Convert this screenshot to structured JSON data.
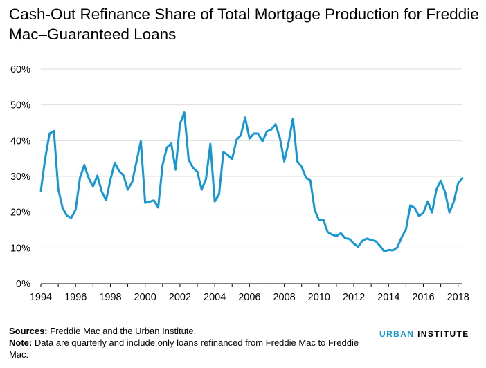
{
  "title": "Cash-Out Refinance Share of Total Mortgage Production for Freddie Mac–Guaranteed Loans",
  "footer": {
    "sources_label": "Sources:",
    "sources_text": " Freddie Mac and the Urban Institute.",
    "note_label": "Note:",
    "note_text": " Data are quarterly and include only loans refinanced from Freddie Mac to Freddie Mac."
  },
  "logo": {
    "word1": "URBAN",
    "word2": " INSTITUTE",
    "accent_color": "#1696d2"
  },
  "chart_data": {
    "type": "line",
    "title": "Cash-Out Refinance Share of Total Mortgage Production for Freddie Mac–Guaranteed Loans",
    "xlabel": "",
    "ylabel": "",
    "xlim": [
      1994,
      2018.25
    ],
    "ylim": [
      0,
      60
    ],
    "y_unit": "%",
    "x_ticks": [
      "1994",
      "1996",
      "1998",
      "2000",
      "2002",
      "2004",
      "2006",
      "2008",
      "2010",
      "2012",
      "2014",
      "2016",
      "2018"
    ],
    "y_ticks": [
      "0%",
      "10%",
      "20%",
      "30%",
      "40%",
      "50%",
      "60%"
    ],
    "grid": "horizontal",
    "legend": "none",
    "line_color": "#1696d2",
    "series": [
      {
        "x": [
          1994.0,
          1994.25,
          1994.5,
          1994.75,
          1995.0,
          1995.25,
          1995.5,
          1995.75,
          1996.0,
          1996.25,
          1996.5,
          1996.75,
          1997.0,
          1997.25,
          1997.5,
          1997.75,
          1998.0,
          1998.25,
          1998.5,
          1998.75,
          1999.0,
          1999.25,
          1999.5,
          1999.75,
          2000.0,
          2000.25,
          2000.5,
          2000.75,
          2001.0,
          2001.25,
          2001.5,
          2001.75,
          2002.0,
          2002.25,
          2002.5,
          2002.75,
          2003.0,
          2003.25,
          2003.5,
          2003.75,
          2004.0,
          2004.25,
          2004.5,
          2004.75,
          2005.0,
          2005.25,
          2005.5,
          2005.75,
          2006.0,
          2006.25,
          2006.5,
          2006.75,
          2007.0,
          2007.25,
          2007.5,
          2007.75,
          2008.0,
          2008.25,
          2008.5,
          2008.75,
          2009.0,
          2009.25,
          2009.5,
          2009.75,
          2010.0,
          2010.25,
          2010.5,
          2010.75,
          2011.0,
          2011.25,
          2011.5,
          2011.75,
          2012.0,
          2012.25,
          2012.5,
          2012.75,
          2013.0,
          2013.25,
          2013.5,
          2013.75,
          2014.0,
          2014.25,
          2014.5,
          2014.75,
          2015.0,
          2015.25,
          2015.5,
          2015.75,
          2016.0,
          2016.25,
          2016.5,
          2016.75,
          2017.0,
          2017.25,
          2017.5,
          2017.75,
          2018.0,
          2018.25
        ],
        "values": [
          26.0,
          35.0,
          42.0,
          42.7,
          26.5,
          21.2,
          19.0,
          18.4,
          20.7,
          29.6,
          33.2,
          29.5,
          27.2,
          30.2,
          25.8,
          23.3,
          29.0,
          33.8,
          31.5,
          30.3,
          26.3,
          28.4,
          34.1,
          39.8,
          22.6,
          22.9,
          23.3,
          21.3,
          33.2,
          38.1,
          39.2,
          31.9,
          44.6,
          47.9,
          34.7,
          32.4,
          31.3,
          26.3,
          29.3,
          39.1,
          23.0,
          25.0,
          36.8,
          36.0,
          34.8,
          40.2,
          41.5,
          46.5,
          40.6,
          42.0,
          42.0,
          39.8,
          42.6,
          43.1,
          44.6,
          40.7,
          34.2,
          39.5,
          46.2,
          34.2,
          32.7,
          29.6,
          28.9,
          20.6,
          17.7,
          17.9,
          14.4,
          13.7,
          13.3,
          14.1,
          12.7,
          12.5,
          11.2,
          10.3,
          12.0,
          12.6,
          12.2,
          11.9,
          10.6,
          9.0,
          9.4,
          9.3,
          10.1,
          12.9,
          15.2,
          21.9,
          21.2,
          18.9,
          19.8,
          23.0,
          19.9,
          26.3,
          28.8,
          25.6,
          19.9,
          22.9,
          28.1,
          29.5
        ]
      }
    ]
  }
}
